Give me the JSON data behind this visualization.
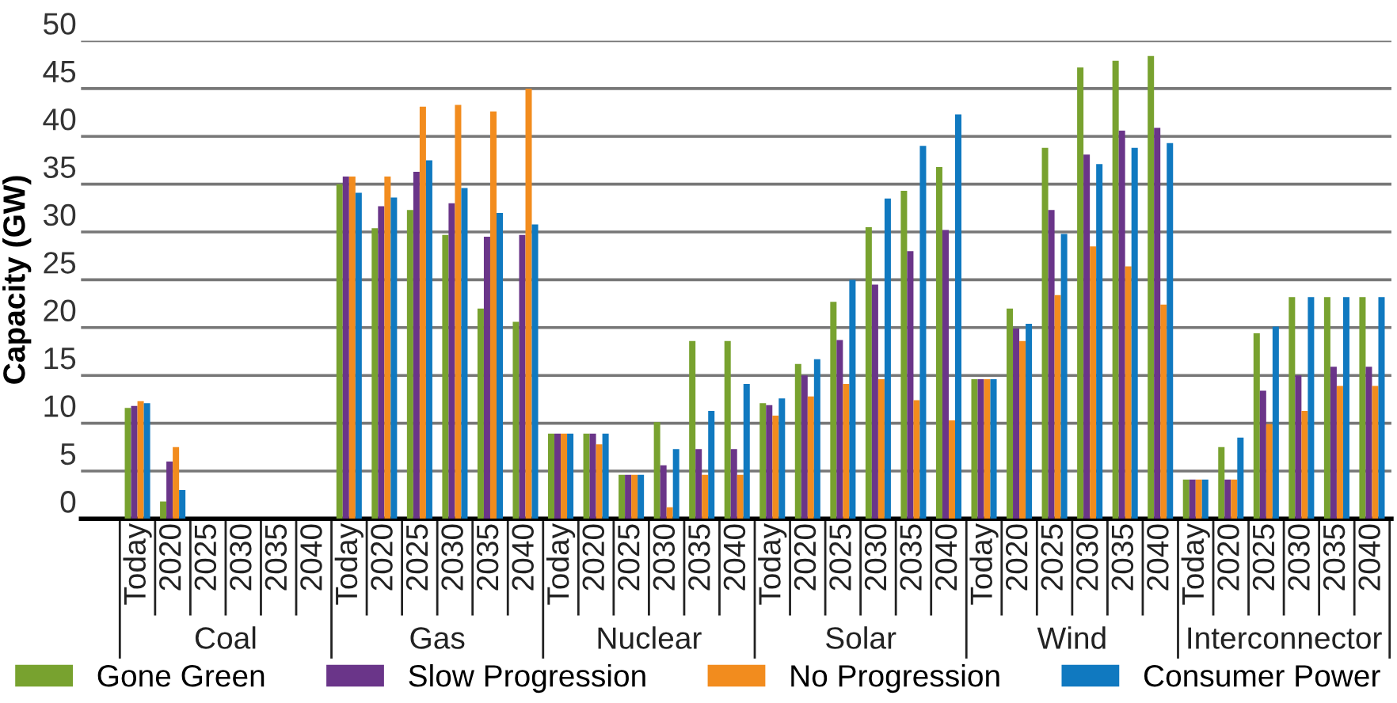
{
  "chart_data": {
    "type": "bar",
    "ylabel": "Capacity (GW)",
    "categories": [
      "Today",
      "2020",
      "2025",
      "2030",
      "2035",
      "2040",
      "Today",
      "2020",
      "2025",
      "2030",
      "2035",
      "2040",
      "Today",
      "2020",
      "2025",
      "2030",
      "2035",
      "2040",
      "Today",
      "2020",
      "2025",
      "2030",
      "2035",
      "2040",
      "Today",
      "2020",
      "2025",
      "2030",
      "2035",
      "2040",
      "Today",
      "2020",
      "2025",
      "2030",
      "2035",
      "2040"
    ],
    "annotations": [
      "Coal",
      "Gas",
      "Nuclear",
      "Solar",
      "Wind",
      "Interconnector"
    ],
    "series": [
      {
        "name": "Gone Green",
        "color": "#78a22f",
        "values": [
          11.6,
          1.8,
          0,
          0,
          0,
          0,
          35.0,
          30.4,
          32.3,
          29.7,
          22.0,
          20.6,
          8.9,
          8.9,
          4.6,
          10.1,
          18.6,
          18.6,
          12.1,
          16.2,
          22.7,
          30.5,
          34.3,
          36.8,
          14.6,
          22.0,
          38.8,
          47.2,
          47.9,
          48.4,
          4.1,
          7.5,
          19.4,
          23.2,
          23.2,
          23.2
        ]
      },
      {
        "name": "Slow Progression",
        "color": "#6a3589",
        "values": [
          11.8,
          6.0,
          0,
          0,
          0,
          0,
          35.8,
          32.7,
          36.3,
          33.0,
          29.5,
          29.7,
          8.9,
          8.9,
          4.6,
          5.6,
          7.3,
          7.3,
          11.9,
          15.0,
          18.7,
          24.5,
          28.0,
          30.2,
          14.6,
          19.9,
          32.3,
          38.1,
          40.6,
          40.9,
          4.1,
          4.1,
          13.4,
          15.0,
          15.9,
          15.9
        ]
      },
      {
        "name": "No Progression",
        "color": "#f28c1e",
        "values": [
          12.3,
          7.5,
          0,
          0,
          0,
          0,
          35.8,
          35.8,
          43.1,
          43.3,
          42.6,
          45.0,
          8.9,
          7.8,
          4.6,
          1.2,
          4.6,
          4.6,
          10.8,
          12.8,
          14.1,
          14.6,
          12.4,
          10.3,
          14.6,
          18.6,
          23.4,
          28.5,
          26.4,
          22.4,
          4.1,
          4.1,
          9.9,
          11.3,
          13.9,
          13.9
        ]
      },
      {
        "name": "Consumer Power",
        "color": "#1079c0",
        "values": [
          12.1,
          3.0,
          0,
          0,
          0,
          0,
          34.1,
          33.6,
          37.5,
          34.6,
          32.0,
          30.8,
          8.9,
          8.9,
          4.6,
          7.3,
          11.3,
          14.1,
          12.6,
          16.7,
          25.0,
          33.5,
          39.0,
          42.3,
          14.6,
          20.4,
          29.8,
          37.1,
          38.8,
          39.3,
          4.1,
          8.5,
          20.1,
          23.2,
          23.2,
          23.2
        ]
      }
    ],
    "ylim": [
      0,
      50
    ],
    "yticks": [
      0,
      5,
      10,
      15,
      20,
      25,
      30,
      35,
      40,
      45,
      50
    ],
    "grid": "y",
    "legend": "bottom"
  }
}
